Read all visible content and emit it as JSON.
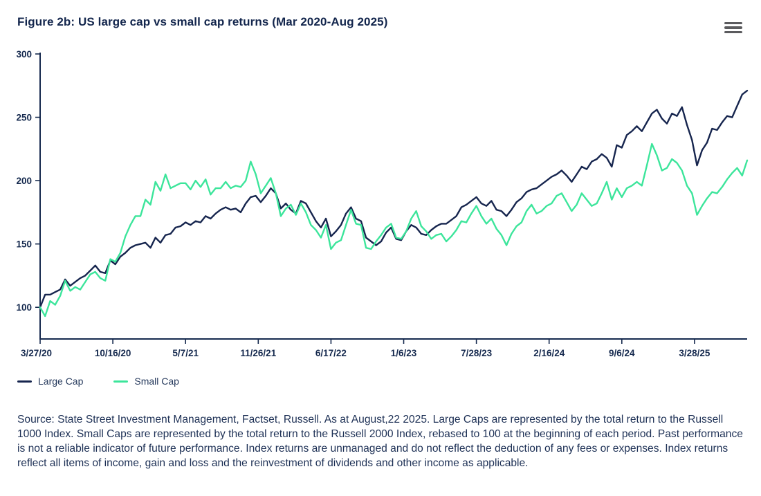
{
  "header": {
    "title": "Figure 2b: US large cap vs small cap returns (Mar 2020-Aug 2025)"
  },
  "colors": {
    "large_cap": "#16254e",
    "small_cap": "#3ce59b",
    "axis": "#15294e",
    "text_navy": "#1d3055",
    "menu_gray": "#5b5b5e"
  },
  "chart_data": {
    "type": "line",
    "title": "Figure 2b: US large cap vs small cap returns (Mar 2020-Aug 2025)",
    "xlabel": "",
    "ylabel": "",
    "ylim": [
      75,
      300
    ],
    "y_ticks": [
      100,
      150,
      200,
      250,
      300
    ],
    "x_tick_labels": [
      "3/27/20",
      "10/16/20",
      "5/7/21",
      "11/26/21",
      "6/17/22",
      "1/6/23",
      "7/28/23",
      "2/16/24",
      "9/6/24",
      "3/28/25"
    ],
    "x_tick_step_frac": 0.10284,
    "x_range_labels": [
      "3/27/20",
      "8/22/25"
    ],
    "grid": false,
    "legend_position": "bottom-left",
    "series": [
      {
        "name": "Large Cap",
        "color": "#16254e",
        "values": [
          100,
          110,
          110,
          112,
          114,
          122,
          117,
          120,
          123,
          125,
          129,
          133,
          128,
          127,
          137,
          134,
          140,
          143,
          147,
          149,
          150,
          151,
          147,
          155,
          151,
          157,
          158,
          163,
          164,
          167,
          165,
          168,
          167,
          172,
          170,
          174,
          177,
          179,
          177,
          178,
          175,
          182,
          187,
          188,
          183,
          188,
          194,
          190,
          178,
          182,
          177,
          174,
          184,
          182,
          175,
          168,
          163,
          170,
          156,
          160,
          165,
          174,
          179,
          170,
          168,
          155,
          152,
          149,
          152,
          159,
          163,
          154,
          153,
          160,
          165,
          163,
          158,
          157,
          161,
          164,
          166,
          166,
          169,
          172,
          179,
          181,
          184,
          187,
          182,
          180,
          184,
          177,
          176,
          172,
          177,
          183,
          186,
          191,
          193,
          194,
          197,
          200,
          203,
          205,
          208,
          204,
          199,
          205,
          211,
          209,
          215,
          217,
          221,
          218,
          211,
          228,
          226,
          236,
          239,
          243,
          239,
          246,
          253,
          256,
          249,
          245,
          253,
          251,
          258,
          244,
          232,
          212,
          224,
          230,
          241,
          240,
          246,
          251,
          250,
          259,
          268,
          271
        ]
      },
      {
        "name": "Small Cap",
        "color": "#3ce59b",
        "values": [
          100,
          93,
          105,
          102,
          109,
          121,
          113,
          116,
          114,
          120,
          126,
          128,
          123,
          121,
          138,
          136,
          143,
          156,
          165,
          172,
          172,
          185,
          181,
          199,
          192,
          205,
          194,
          196,
          198,
          198,
          193,
          200,
          195,
          201,
          189,
          194,
          194,
          199,
          194,
          196,
          195,
          200,
          215,
          205,
          190,
          196,
          202,
          190,
          172,
          178,
          181,
          173,
          182,
          175,
          165,
          161,
          155,
          165,
          146,
          151,
          153,
          165,
          177,
          166,
          165,
          147,
          146,
          152,
          157,
          163,
          166,
          155,
          154,
          160,
          170,
          176,
          164,
          160,
          154,
          157,
          158,
          152,
          156,
          161,
          168,
          167,
          174,
          180,
          172,
          166,
          170,
          162,
          157,
          149,
          158,
          164,
          167,
          176,
          181,
          174,
          176,
          180,
          182,
          188,
          190,
          183,
          176,
          181,
          190,
          185,
          180,
          182,
          190,
          199,
          185,
          194,
          187,
          194,
          196,
          199,
          196,
          212,
          229,
          220,
          208,
          210,
          217,
          214,
          208,
          196,
          190,
          173,
          180,
          186,
          191,
          190,
          195,
          201,
          206,
          210,
          204,
          216
        ]
      }
    ]
  },
  "legend": {
    "items": [
      {
        "label": "Large Cap",
        "color": "#16254e"
      },
      {
        "label": "Small Cap",
        "color": "#3ce59b"
      }
    ]
  },
  "footer": {
    "source_text": "Source: State Street Investment Management, Factset, Russell. As at August,22 2025. Large Caps are represented by the total return to the Russell 1000 Index. Small Caps are represented by the total return to the Russell 2000 Index, rebased to 100 at the beginning of each period. Past performance is not a reliable indicator of future performance. Index returns are unmanaged and do not reflect the deduction of any fees or expenses. Index returns reflect all items of income, gain and loss and the reinvestment of dividends and other income as applicable."
  }
}
